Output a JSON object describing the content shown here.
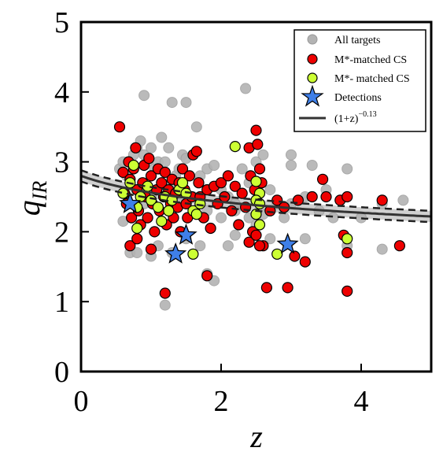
{
  "chart_data": {
    "type": "scatter",
    "title": "",
    "xlabel": "z",
    "ylabel_main": "q",
    "ylabel_sub": "IR",
    "xlim": [
      0,
      5
    ],
    "ylim": [
      0,
      5
    ],
    "x_ticks": [
      0,
      2,
      4
    ],
    "y_ticks": [
      0,
      1,
      2,
      3,
      4,
      5
    ],
    "grid": false,
    "legend_position": "top-right",
    "legend": {
      "all_targets": "All targets",
      "matched_cs": "M*-matched CS",
      "matched_cs_alt": "M*- matched CS",
      "detections": "Detections",
      "fit_base": "(1+z)",
      "fit_exp": "−0.13"
    },
    "colors": {
      "all_targets": "#b3b3b3",
      "matched_cs": "#ee0000",
      "matched_cs_alt": "#ccff33",
      "detections": "#3f7fe8",
      "fit": "#333333",
      "band": "#c8c8c8"
    },
    "fit": {
      "norm": 2.8,
      "exponent": -0.13,
      "band_halfwidth": 0.08
    },
    "series": [
      {
        "name": "All targets",
        "points": [
          [
            0.55,
            2.9
          ],
          [
            0.6,
            3.0
          ],
          [
            0.65,
            2.8
          ],
          [
            0.7,
            2.7
          ],
          [
            0.75,
            3.1
          ],
          [
            0.8,
            3.2
          ],
          [
            0.85,
            3.3
          ],
          [
            0.9,
            3.1
          ],
          [
            0.95,
            3.0
          ],
          [
            1.0,
            3.2
          ],
          [
            1.05,
            2.9
          ],
          [
            1.1,
            3.0
          ],
          [
            1.15,
            3.35
          ],
          [
            1.2,
            3.0
          ],
          [
            1.25,
            3.2
          ],
          [
            1.3,
            2.7
          ],
          [
            1.35,
            2.8
          ],
          [
            1.4,
            2.9
          ],
          [
            1.45,
            3.1
          ],
          [
            1.5,
            3.05
          ],
          [
            1.6,
            3.1
          ],
          [
            1.65,
            3.5
          ],
          [
            1.7,
            2.8
          ],
          [
            1.8,
            2.9
          ],
          [
            1.9,
            2.95
          ],
          [
            2.0,
            2.6
          ],
          [
            2.1,
            2.5
          ],
          [
            2.2,
            2.4
          ],
          [
            2.3,
            2.9
          ],
          [
            2.4,
            2.7
          ],
          [
            2.5,
            3.0
          ],
          [
            2.6,
            3.1
          ],
          [
            2.7,
            2.6
          ],
          [
            2.8,
            2.4
          ],
          [
            2.9,
            2.2
          ],
          [
            3.0,
            2.95
          ],
          [
            3.0,
            3.1
          ],
          [
            3.2,
            2.5
          ],
          [
            3.3,
            2.95
          ],
          [
            3.5,
            2.6
          ],
          [
            3.8,
            2.9
          ],
          [
            4.3,
            2.4
          ],
          [
            4.3,
            1.75
          ],
          [
            4.6,
            2.45
          ],
          [
            0.6,
            2.15
          ],
          [
            0.7,
            1.7
          ],
          [
            0.8,
            1.7
          ],
          [
            1.0,
            1.65
          ],
          [
            1.1,
            1.8
          ],
          [
            1.2,
            0.95
          ],
          [
            1.3,
            1.7
          ],
          [
            1.5,
            1.9
          ],
          [
            1.7,
            1.8
          ],
          [
            1.8,
            1.4
          ],
          [
            1.9,
            1.3
          ],
          [
            2.1,
            1.8
          ],
          [
            2.2,
            1.95
          ],
          [
            2.5,
            2.1
          ],
          [
            2.7,
            1.9
          ],
          [
            3.2,
            1.9
          ],
          [
            3.8,
            1.8
          ],
          [
            0.9,
            3.95
          ],
          [
            1.3,
            3.85
          ],
          [
            1.5,
            3.85
          ],
          [
            2.35,
            4.05
          ],
          [
            0.8,
            2.6
          ],
          [
            0.9,
            2.4
          ],
          [
            1.0,
            2.5
          ],
          [
            1.2,
            2.6
          ],
          [
            1.4,
            2.4
          ],
          [
            1.6,
            2.5
          ],
          [
            1.8,
            2.3
          ],
          [
            2.0,
            2.2
          ],
          [
            2.2,
            2.3
          ],
          [
            2.4,
            2.2
          ],
          [
            2.6,
            2.25
          ],
          [
            3.0,
            2.4
          ],
          [
            3.4,
            2.3
          ],
          [
            3.6,
            2.2
          ],
          [
            4.0,
            2.2
          ]
        ]
      },
      {
        "name": "M*-matched CS",
        "points": [
          [
            0.55,
            3.5
          ],
          [
            0.6,
            2.85
          ],
          [
            0.62,
            2.55
          ],
          [
            0.65,
            2.4
          ],
          [
            0.68,
            3.0
          ],
          [
            0.7,
            2.75
          ],
          [
            0.72,
            2.2
          ],
          [
            0.75,
            2.9
          ],
          [
            0.78,
            3.2
          ],
          [
            0.8,
            2.6
          ],
          [
            0.82,
            2.3
          ],
          [
            0.85,
            2.1
          ],
          [
            0.88,
            2.7
          ],
          [
            0.9,
            2.95
          ],
          [
            0.92,
            2.5
          ],
          [
            0.95,
            2.2
          ],
          [
            0.97,
            3.05
          ],
          [
            1.0,
            2.8
          ],
          [
            1.02,
            2.4
          ],
          [
            1.05,
            2.0
          ],
          [
            1.08,
            2.6
          ],
          [
            1.1,
            2.9
          ],
          [
            1.12,
            2.3
          ],
          [
            1.15,
            2.7
          ],
          [
            1.18,
            2.5
          ],
          [
            1.2,
            2.85
          ],
          [
            1.22,
            2.1
          ],
          [
            1.25,
            2.6
          ],
          [
            1.28,
            2.4
          ],
          [
            1.3,
            2.75
          ],
          [
            1.32,
            2.2
          ],
          [
            1.35,
            2.55
          ],
          [
            1.38,
            2.35
          ],
          [
            1.4,
            2.7
          ],
          [
            1.42,
            2.0
          ],
          [
            1.45,
            2.9
          ],
          [
            1.48,
            2.6
          ],
          [
            1.5,
            2.4
          ],
          [
            1.52,
            2.2
          ],
          [
            1.55,
            2.8
          ],
          [
            1.58,
            2.5
          ],
          [
            1.6,
            3.1
          ],
          [
            1.62,
            2.3
          ],
          [
            1.65,
            3.15
          ],
          [
            1.68,
            2.7
          ],
          [
            1.7,
            2.5
          ],
          [
            1.75,
            2.2
          ],
          [
            1.8,
            2.6
          ],
          [
            1.85,
            2.05
          ],
          [
            1.9,
            2.65
          ],
          [
            1.95,
            2.4
          ],
          [
            2.0,
            2.7
          ],
          [
            2.05,
            2.5
          ],
          [
            2.1,
            2.8
          ],
          [
            2.15,
            2.3
          ],
          [
            2.2,
            2.65
          ],
          [
            2.25,
            2.1
          ],
          [
            2.3,
            2.55
          ],
          [
            2.35,
            2.35
          ],
          [
            2.4,
            3.2
          ],
          [
            2.42,
            2.8
          ],
          [
            2.45,
            2.0
          ],
          [
            2.48,
            2.6
          ],
          [
            2.5,
            3.45
          ],
          [
            2.52,
            3.25
          ],
          [
            2.55,
            2.9
          ],
          [
            2.58,
            2.7
          ],
          [
            2.6,
            1.8
          ],
          [
            2.65,
            1.2
          ],
          [
            2.7,
            2.3
          ],
          [
            2.8,
            2.45
          ],
          [
            2.9,
            2.35
          ],
          [
            2.95,
            1.2
          ],
          [
            3.05,
            1.65
          ],
          [
            3.1,
            2.45
          ],
          [
            3.2,
            1.57
          ],
          [
            3.3,
            2.5
          ],
          [
            3.45,
            2.75
          ],
          [
            3.5,
            2.5
          ],
          [
            3.7,
            2.45
          ],
          [
            3.75,
            1.95
          ],
          [
            3.8,
            2.5
          ],
          [
            3.8,
            1.7
          ],
          [
            3.8,
            1.15
          ],
          [
            4.3,
            2.45
          ],
          [
            4.55,
            1.8
          ],
          [
            0.7,
            1.8
          ],
          [
            0.8,
            1.9
          ],
          [
            1.0,
            1.75
          ],
          [
            1.2,
            1.12
          ],
          [
            1.8,
            1.37
          ],
          [
            2.4,
            1.85
          ],
          [
            2.5,
            1.95
          ],
          [
            2.55,
            1.8
          ]
        ]
      },
      {
        "name": "M*- matched CS",
        "points": [
          [
            0.6,
            2.55
          ],
          [
            0.7,
            2.7
          ],
          [
            0.75,
            2.95
          ],
          [
            0.8,
            2.35
          ],
          [
            0.85,
            2.5
          ],
          [
            0.95,
            2.65
          ],
          [
            1.0,
            2.45
          ],
          [
            1.1,
            2.35
          ],
          [
            1.15,
            2.15
          ],
          [
            1.2,
            2.5
          ],
          [
            1.25,
            2.3
          ],
          [
            1.3,
            2.45
          ],
          [
            1.4,
            2.6
          ],
          [
            1.45,
            2.7
          ],
          [
            1.5,
            2.55
          ],
          [
            1.6,
            2.3
          ],
          [
            1.65,
            2.25
          ],
          [
            1.7,
            2.4
          ],
          [
            2.2,
            3.22
          ],
          [
            2.5,
            2.72
          ],
          [
            2.55,
            2.55
          ],
          [
            2.5,
            2.45
          ],
          [
            2.55,
            2.4
          ],
          [
            2.5,
            2.25
          ],
          [
            2.55,
            2.1
          ],
          [
            2.8,
            1.68
          ],
          [
            3.8,
            1.9
          ],
          [
            1.6,
            1.68
          ],
          [
            0.8,
            2.05
          ]
        ]
      },
      {
        "name": "Detections",
        "points": [
          [
            0.7,
            2.4
          ],
          [
            1.35,
            1.68
          ],
          [
            1.5,
            1.95
          ],
          [
            2.95,
            1.82
          ]
        ]
      }
    ]
  }
}
